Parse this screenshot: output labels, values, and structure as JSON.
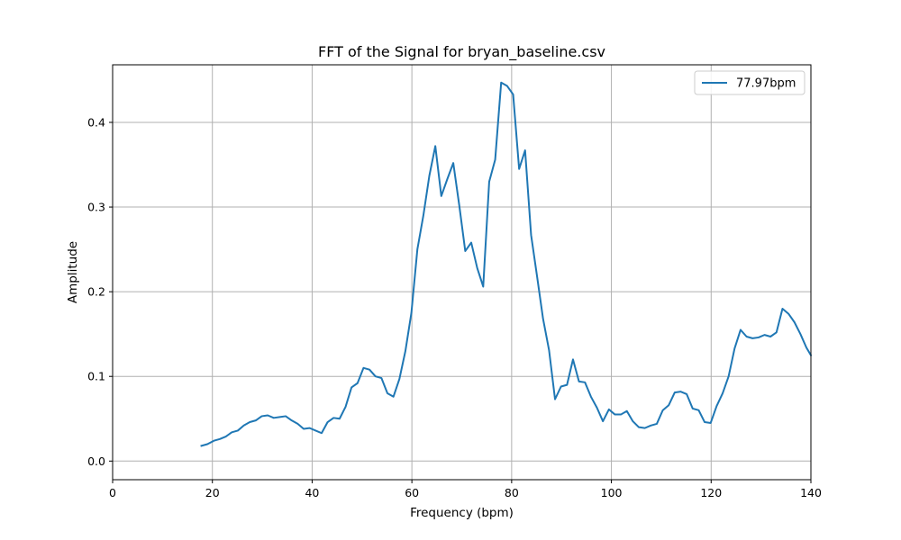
{
  "chart_data": {
    "type": "line",
    "title": "FFT of the Signal for bryan_baseline.csv",
    "xlabel": "Frequency (bpm)",
    "ylabel": "Amplitude",
    "xlim": [
      0,
      140
    ],
    "ylim": [
      -0.022,
      0.468
    ],
    "xticks": [
      0,
      20,
      40,
      60,
      80,
      100,
      120,
      140
    ],
    "yticks": [
      0.0,
      0.1,
      0.2,
      0.3,
      0.4
    ],
    "ytick_labels": [
      "0.0",
      "0.1",
      "0.2",
      "0.3",
      "0.4"
    ],
    "grid": true,
    "legend_position": "top-right",
    "series": [
      {
        "name": "77.97bpm",
        "color": "#1f77b4",
        "x": [
          17.8,
          19.0,
          20.3,
          21.5,
          22.7,
          23.9,
          25.1,
          26.3,
          27.5,
          28.7,
          29.9,
          31.1,
          32.3,
          33.5,
          34.7,
          35.9,
          37.1,
          38.3,
          39.5,
          40.7,
          41.9,
          43.1,
          44.3,
          45.5,
          46.7,
          47.9,
          49.1,
          50.3,
          51.5,
          52.7,
          53.9,
          55.1,
          56.3,
          57.5,
          58.7,
          59.9,
          61.1,
          62.3,
          63.5,
          64.7,
          65.9,
          67.1,
          68.3,
          69.5,
          70.7,
          71.9,
          73.1,
          74.3,
          75.5,
          76.7,
          77.9,
          79.1,
          80.3,
          81.5,
          82.7,
          83.9,
          85.1,
          86.3,
          87.5,
          88.7,
          89.9,
          91.1,
          92.3,
          93.5,
          94.7,
          95.9,
          97.1,
          98.3,
          99.5,
          100.7,
          101.9,
          103.1,
          104.3,
          105.5,
          106.7,
          107.9,
          109.1,
          110.3,
          111.5,
          112.7,
          113.9,
          115.1,
          116.3,
          117.5,
          118.7,
          119.9,
          121.1,
          122.3,
          123.5,
          124.7,
          125.9,
          127.1,
          128.3,
          129.5,
          130.7,
          131.9,
          133.1,
          134.3,
          135.5,
          136.7,
          137.9,
          139.1,
          140.0
        ],
        "y": [
          0.018,
          0.02,
          0.024,
          0.026,
          0.029,
          0.034,
          0.036,
          0.042,
          0.046,
          0.048,
          0.053,
          0.054,
          0.051,
          0.052,
          0.053,
          0.048,
          0.044,
          0.038,
          0.039,
          0.036,
          0.033,
          0.046,
          0.051,
          0.05,
          0.064,
          0.087,
          0.092,
          0.11,
          0.108,
          0.1,
          0.098,
          0.08,
          0.076,
          0.097,
          0.13,
          0.175,
          0.25,
          0.29,
          0.337,
          0.372,
          0.313,
          0.333,
          0.352,
          0.302,
          0.248,
          0.258,
          0.228,
          0.206,
          0.33,
          0.356,
          0.447,
          0.443,
          0.433,
          0.345,
          0.367,
          0.267,
          0.218,
          0.168,
          0.131,
          0.073,
          0.088,
          0.09,
          0.12,
          0.094,
          0.093,
          0.076,
          0.063,
          0.047,
          0.061,
          0.055,
          0.055,
          0.059,
          0.047,
          0.04,
          0.039,
          0.042,
          0.044,
          0.06,
          0.066,
          0.081,
          0.082,
          0.079,
          0.062,
          0.06,
          0.046,
          0.045,
          0.065,
          0.08,
          0.1,
          0.133,
          0.155,
          0.147,
          0.145,
          0.146,
          0.149,
          0.147,
          0.152,
          0.18,
          0.174,
          0.164,
          0.15,
          0.134,
          0.125
        ]
      }
    ]
  }
}
